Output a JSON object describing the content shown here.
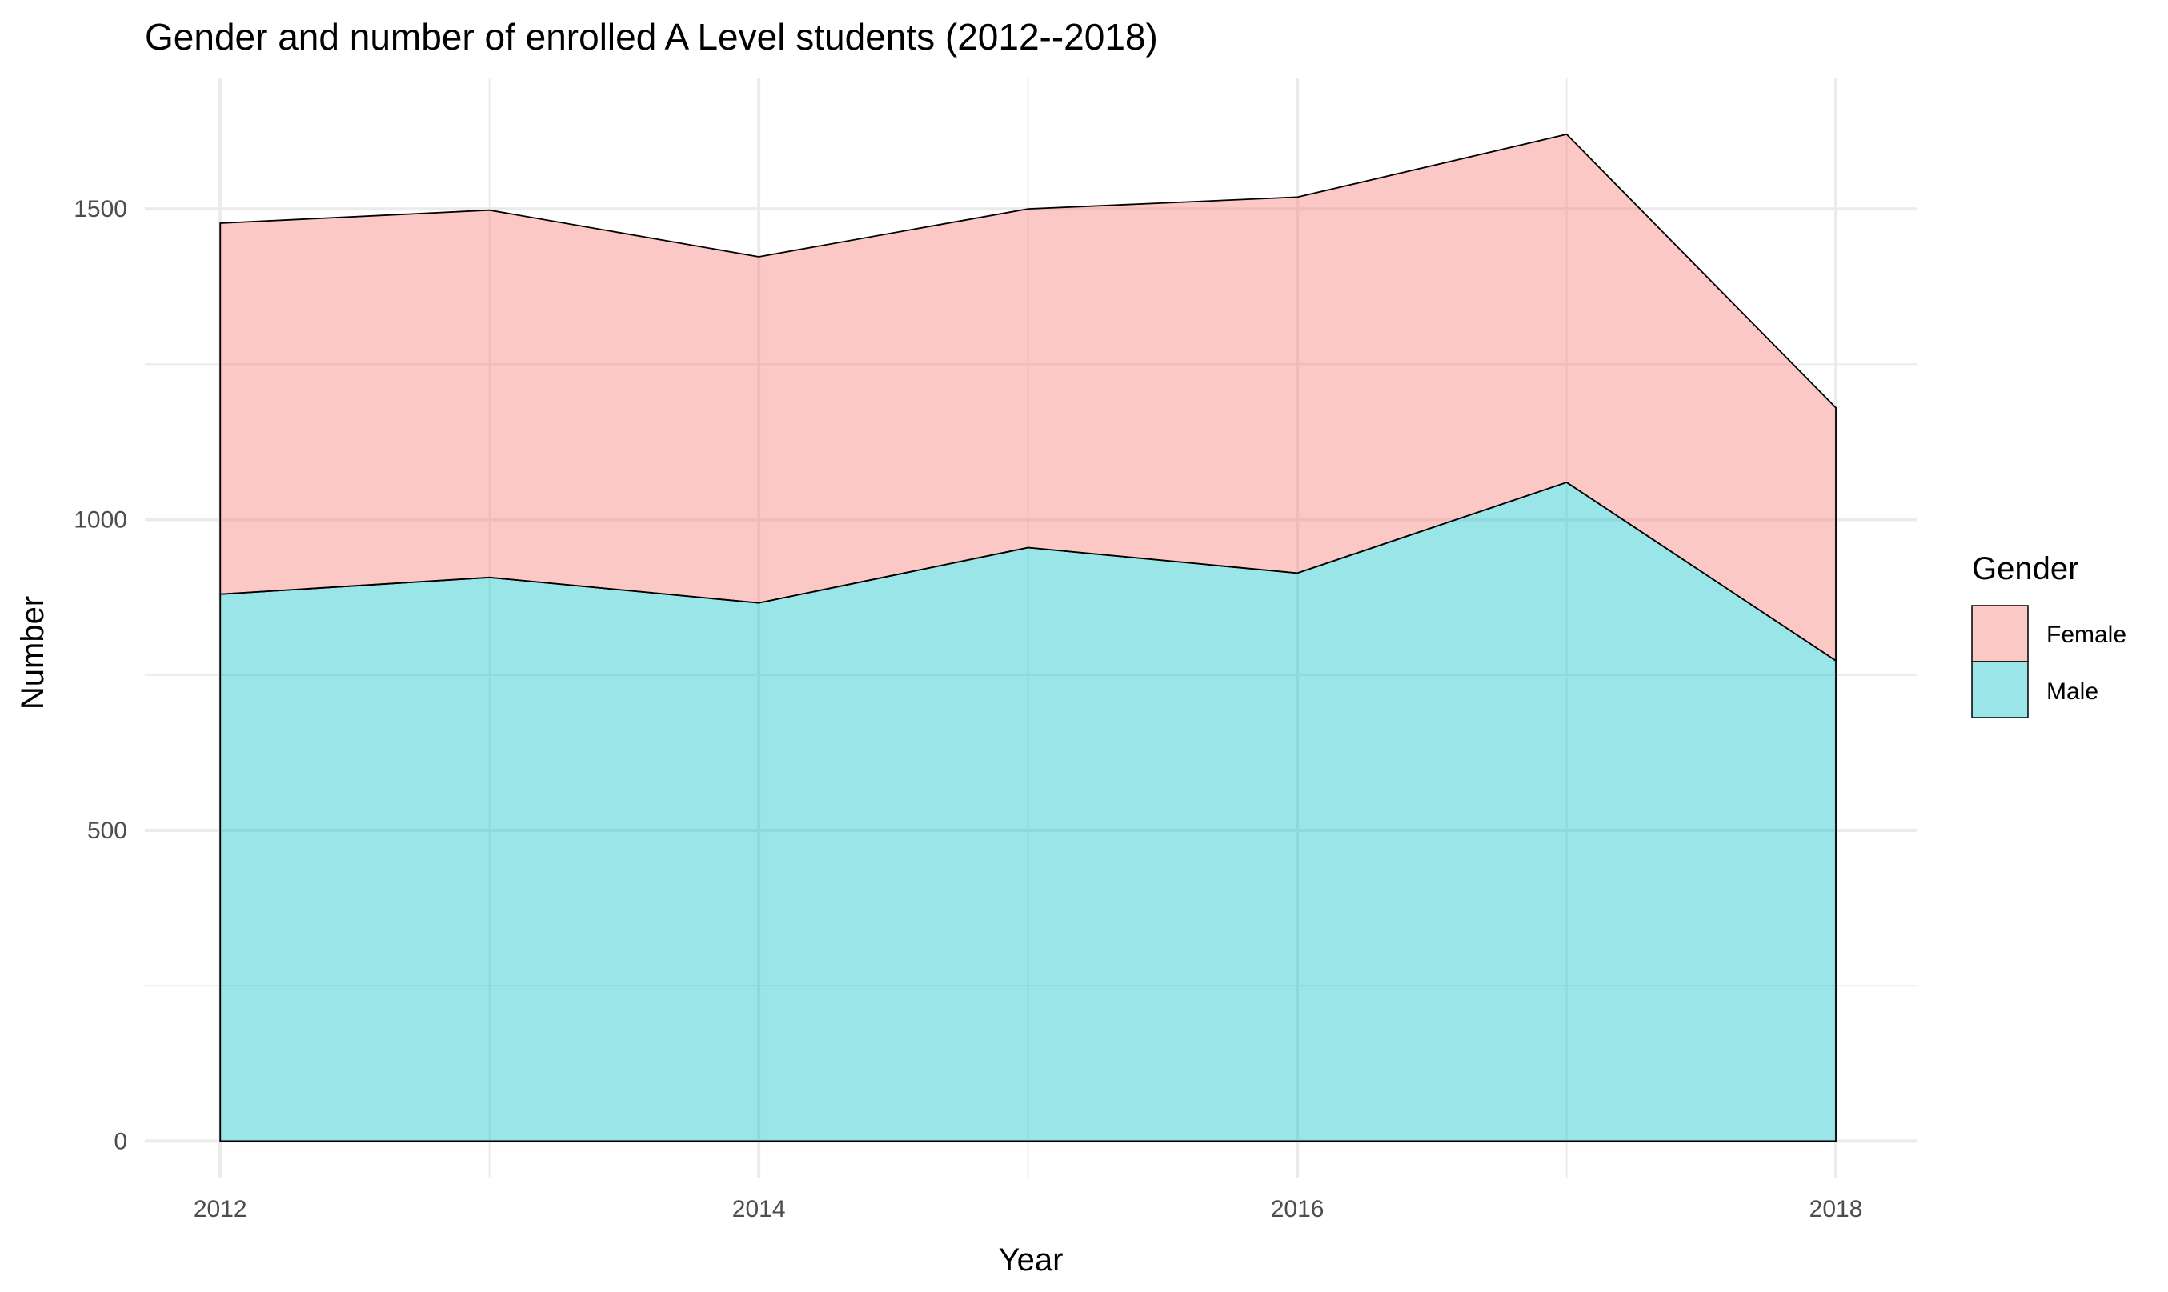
{
  "chart_data": {
    "type": "area",
    "stacked": true,
    "title": "Gender and number of enrolled A Level students (2012--2018)",
    "xlabel": "Year",
    "ylabel": "Number",
    "x": [
      2012,
      2013,
      2014,
      2015,
      2016,
      2017,
      2018
    ],
    "xlim": [
      2011.72,
      2018.3
    ],
    "ylim": [
      -60,
      1710
    ],
    "x_ticks": [
      2012,
      2014,
      2016,
      2018
    ],
    "x_tick_labels": [
      "2012",
      "2014",
      "2016",
      "2018"
    ],
    "y_ticks": [
      0,
      500,
      1000,
      1500
    ],
    "y_tick_labels": [
      "0",
      "500",
      "1000",
      "1500"
    ],
    "y_minor_ticks": [
      250,
      750,
      1250
    ],
    "grid": true,
    "legend": {
      "title": "Gender",
      "position": "right",
      "entries": [
        "Female",
        "Male"
      ]
    },
    "series": [
      {
        "name": "Male",
        "color": "#00BFC4",
        "values": [
          880,
          907,
          866,
          955,
          914,
          1060,
          773
        ]
      },
      {
        "name": "Female",
        "color": "#F8766D",
        "values": [
          597,
          591,
          557,
          545,
          605,
          560,
          407
        ]
      }
    ]
  }
}
